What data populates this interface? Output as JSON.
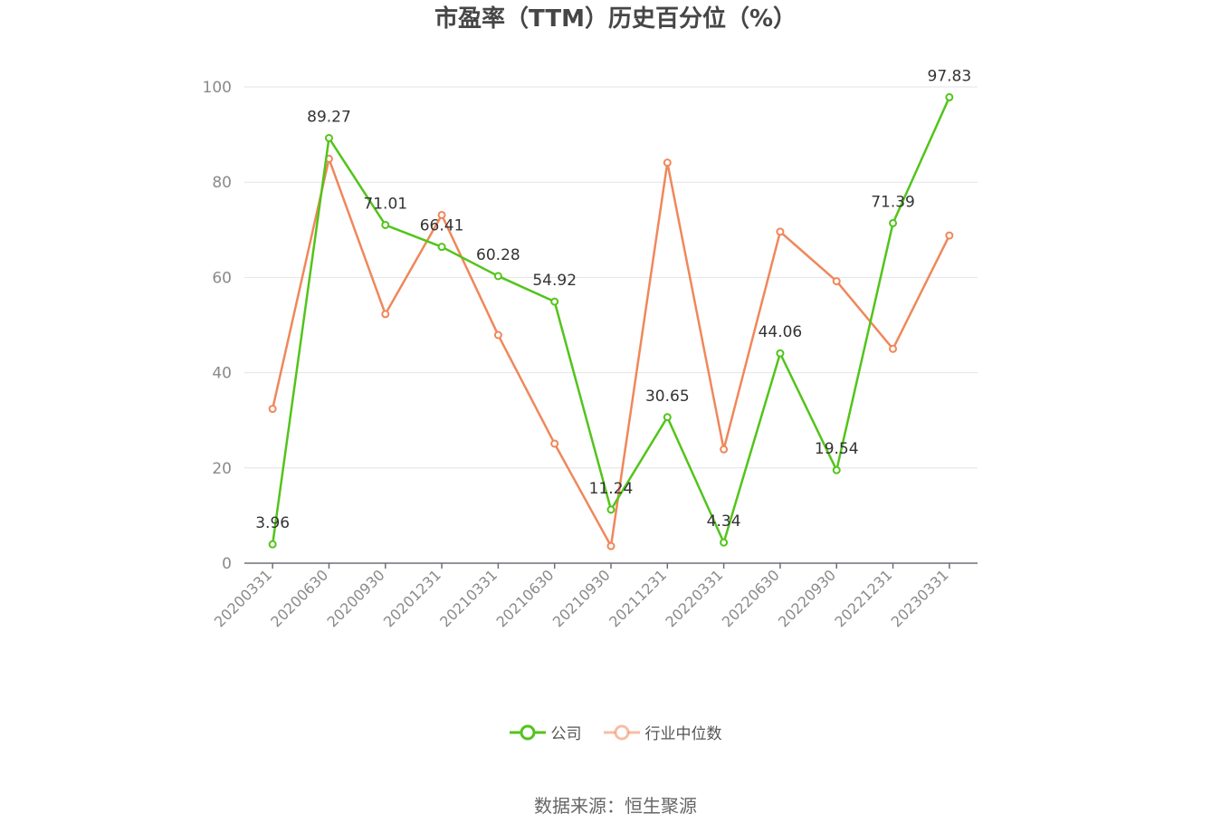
{
  "chart_data": {
    "type": "line",
    "title": "市盈率（TTM）历史百分位（%）",
    "x": [
      "20200331",
      "20200630",
      "20200930",
      "20201231",
      "20210331",
      "20210630",
      "20210930",
      "20211231",
      "20220331",
      "20220630",
      "20220930",
      "20221231",
      "20230331"
    ],
    "ylim": [
      0,
      100
    ],
    "yticks": [
      0,
      20,
      40,
      60,
      80,
      100
    ],
    "grid": true,
    "legend_position": "bottom-center",
    "series": [
      {
        "name": "公司",
        "color": "#52c41a",
        "values": [
          3.96,
          89.27,
          71.01,
          66.41,
          60.28,
          54.92,
          11.24,
          30.65,
          4.34,
          44.06,
          19.54,
          71.39,
          97.83
        ],
        "labels": [
          "3.96",
          "89.27",
          "71.01",
          "66.41",
          "60.28",
          "54.92",
          "11.24",
          "30.65",
          "4.34",
          "44.06",
          "19.54",
          "71.39",
          "97.83"
        ]
      },
      {
        "name": "行业中位数",
        "color": "#f0875a",
        "values": [
          32.4,
          84.9,
          52.3,
          73.1,
          47.9,
          25.1,
          3.6,
          84.1,
          23.9,
          69.6,
          59.2,
          45.0,
          68.8
        ]
      }
    ]
  },
  "source_note": "数据来源：恒生聚源"
}
